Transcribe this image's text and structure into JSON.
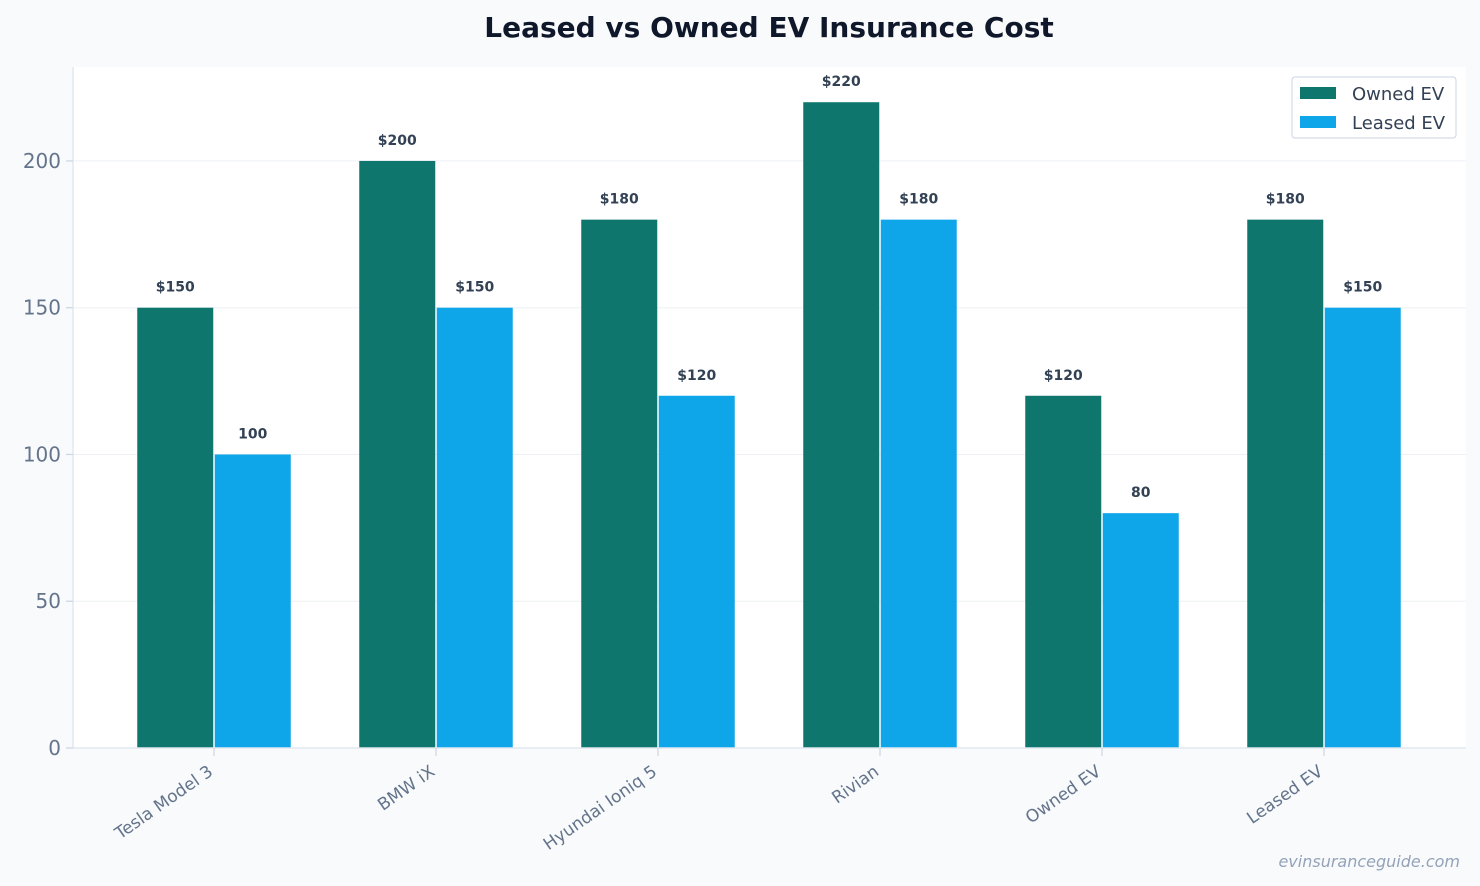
{
  "chart_data": {
    "type": "bar",
    "title": "Leased vs Owned EV Insurance Cost",
    "xlabel": "",
    "ylabel": "",
    "categories": [
      "Tesla Model 3",
      "BMW iX",
      "Hyundai Ioniq 5",
      "Rivian",
      "Owned EV",
      "Leased EV"
    ],
    "series": [
      {
        "name": "Owned EV",
        "color": "#0f766e",
        "values": [
          150,
          200,
          180,
          220,
          120,
          180
        ],
        "labels": [
          "$150",
          "$200",
          "$180",
          "$220",
          "$120",
          "$180"
        ]
      },
      {
        "name": "Leased EV",
        "color": "#0ea5e9",
        "values": [
          100,
          150,
          120,
          180,
          80,
          150
        ],
        "labels": [
          "100",
          "$150",
          "$120",
          "$180",
          "80",
          "$150"
        ]
      }
    ],
    "ylim": [
      0,
      232
    ],
    "yticks": [
      0,
      50,
      100,
      150,
      200
    ],
    "grid": true,
    "legend_position": "top-right"
  },
  "watermark": "evinsuranceguide.com"
}
